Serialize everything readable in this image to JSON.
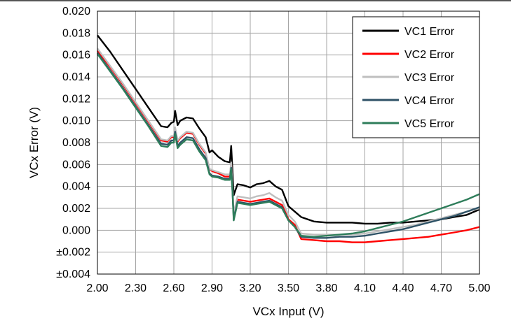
{
  "chart_data": {
    "type": "line",
    "xlabel": "VCx Input (V)",
    "ylabel": "VCx Error (V)",
    "xlim": [
      2.0,
      5.0
    ],
    "ylim": [
      -0.004,
      0.02
    ],
    "x_ticks": [
      "2.00",
      "2.30",
      "2.60",
      "2.90",
      "3.20",
      "3.50",
      "3.80",
      "4.10",
      "4.40",
      "4.70",
      "5.00"
    ],
    "y_ticks": [
      "0.020",
      "0.018",
      "0.016",
      "0.014",
      "0.012",
      "0.010",
      "0.008",
      "0.006",
      "0.004",
      "0.002",
      "0.000",
      "±0.002",
      "±0.004"
    ],
    "grid": true,
    "legend_position": "top-right",
    "series": [
      {
        "name": "VC1 Error",
        "color": "#000000",
        "x": [
          2.0,
          2.1,
          2.2,
          2.3,
          2.4,
          2.5,
          2.55,
          2.58,
          2.6,
          2.61,
          2.63,
          2.65,
          2.7,
          2.75,
          2.8,
          2.85,
          2.88,
          2.9,
          2.95,
          3.0,
          3.04,
          3.05,
          3.06,
          3.07,
          3.1,
          3.15,
          3.2,
          3.25,
          3.3,
          3.35,
          3.4,
          3.45,
          3.5,
          3.55,
          3.6,
          3.7,
          3.8,
          3.9,
          4.0,
          4.1,
          4.2,
          4.3,
          4.4,
          4.5,
          4.6,
          4.7,
          4.8,
          4.9,
          5.0
        ],
        "y": [
          0.0178,
          0.0163,
          0.0146,
          0.0129,
          0.0112,
          0.0095,
          0.0094,
          0.0098,
          0.0099,
          0.0109,
          0.0096,
          0.01,
          0.0103,
          0.0102,
          0.0093,
          0.0085,
          0.0071,
          0.0073,
          0.0067,
          0.0063,
          0.0062,
          0.0077,
          0.0055,
          0.0032,
          0.0042,
          0.0041,
          0.0039,
          0.0042,
          0.0043,
          0.0045,
          0.004,
          0.0037,
          0.0022,
          0.0017,
          0.0012,
          0.0008,
          0.0007,
          0.0007,
          0.0007,
          0.0006,
          0.0006,
          0.0007,
          0.0007,
          0.0008,
          0.0009,
          0.001,
          0.0012,
          0.0014,
          0.0019
        ]
      },
      {
        "name": "VC2 Error",
        "color": "#ff0000",
        "x": [
          2.0,
          2.1,
          2.2,
          2.3,
          2.4,
          2.5,
          2.55,
          2.58,
          2.6,
          2.61,
          2.63,
          2.65,
          2.7,
          2.75,
          2.8,
          2.85,
          2.88,
          2.9,
          2.95,
          3.0,
          3.04,
          3.05,
          3.06,
          3.07,
          3.1,
          3.15,
          3.2,
          3.25,
          3.3,
          3.35,
          3.4,
          3.45,
          3.5,
          3.55,
          3.6,
          3.7,
          3.8,
          3.9,
          4.0,
          4.1,
          4.2,
          4.3,
          4.4,
          4.5,
          4.6,
          4.7,
          4.8,
          4.9,
          5.0
        ],
        "y": [
          0.0164,
          0.0149,
          0.0133,
          0.0116,
          0.0099,
          0.0082,
          0.0081,
          0.0085,
          0.0085,
          0.0093,
          0.0081,
          0.0084,
          0.0089,
          0.0088,
          0.0078,
          0.007,
          0.0056,
          0.0054,
          0.0052,
          0.0049,
          0.0049,
          0.0061,
          0.004,
          0.0012,
          0.0028,
          0.0027,
          0.0026,
          0.0027,
          0.0028,
          0.0029,
          0.0026,
          0.0023,
          0.001,
          0.0005,
          -0.0008,
          -0.0009,
          -0.001,
          -0.001,
          -0.0011,
          -0.0011,
          -0.001,
          -0.0009,
          -0.0008,
          -0.0007,
          -0.0006,
          -0.0004,
          -0.0002,
          0.0,
          0.0003
        ]
      },
      {
        "name": "VC3 Error",
        "color": "#bfbfbf",
        "x": [
          2.0,
          2.1,
          2.2,
          2.3,
          2.4,
          2.5,
          2.55,
          2.58,
          2.6,
          2.61,
          2.63,
          2.65,
          2.7,
          2.75,
          2.8,
          2.85,
          2.88,
          2.9,
          2.95,
          3.0,
          3.04,
          3.05,
          3.06,
          3.07,
          3.1,
          3.15,
          3.2,
          3.25,
          3.3,
          3.35,
          3.4,
          3.45,
          3.5,
          3.55,
          3.6,
          3.7,
          3.8,
          3.9,
          4.0,
          4.1,
          4.2,
          4.3,
          4.4,
          4.5,
          4.6,
          4.7,
          4.8,
          4.9,
          5.0
        ],
        "y": [
          0.0166,
          0.015,
          0.0134,
          0.0117,
          0.01,
          0.0083,
          0.0082,
          0.0086,
          0.0086,
          0.0094,
          0.0082,
          0.0085,
          0.009,
          0.0089,
          0.0079,
          0.0071,
          0.0056,
          0.0055,
          0.0053,
          0.0051,
          0.0051,
          0.0062,
          0.0042,
          0.0015,
          0.0031,
          0.003,
          0.0029,
          0.0031,
          0.0032,
          0.0034,
          0.003,
          0.0027,
          0.0014,
          0.0008,
          -0.0003,
          -0.0004,
          -0.0004,
          -0.0004,
          -0.0004,
          -0.0003,
          -0.0001,
          0.0001,
          0.0003,
          0.0005,
          0.0008,
          0.0011,
          0.0014,
          0.0017,
          0.002
        ]
      },
      {
        "name": "VC4 Error",
        "color": "#2e5266",
        "x": [
          2.0,
          2.1,
          2.2,
          2.3,
          2.4,
          2.5,
          2.55,
          2.58,
          2.6,
          2.61,
          2.63,
          2.65,
          2.7,
          2.75,
          2.8,
          2.85,
          2.88,
          2.9,
          2.95,
          3.0,
          3.04,
          3.05,
          3.06,
          3.07,
          3.1,
          3.15,
          3.2,
          3.25,
          3.3,
          3.35,
          3.4,
          3.45,
          3.5,
          3.55,
          3.6,
          3.7,
          3.8,
          3.9,
          4.0,
          4.1,
          4.2,
          4.3,
          4.4,
          4.5,
          4.6,
          4.7,
          4.8,
          4.9,
          5.0
        ],
        "y": [
          0.0162,
          0.0146,
          0.013,
          0.0113,
          0.0096,
          0.0079,
          0.0078,
          0.0082,
          0.0082,
          0.009,
          0.0077,
          0.008,
          0.0085,
          0.0084,
          0.0074,
          0.0066,
          0.0052,
          0.005,
          0.0049,
          0.0047,
          0.0047,
          0.0057,
          0.0037,
          0.001,
          0.0026,
          0.0025,
          0.0024,
          0.0025,
          0.0026,
          0.0027,
          0.0024,
          0.0021,
          0.0009,
          0.0003,
          -0.0006,
          -0.0007,
          -0.0007,
          -0.0006,
          -0.0006,
          -0.0005,
          -0.0003,
          -0.0001,
          0.0001,
          0.0004,
          0.0007,
          0.001,
          0.0013,
          0.0017,
          0.0021
        ]
      },
      {
        "name": "VC5 Error",
        "color": "#2e7d5a",
        "x": [
          2.0,
          2.1,
          2.2,
          2.3,
          2.4,
          2.5,
          2.55,
          2.58,
          2.6,
          2.61,
          2.63,
          2.65,
          2.7,
          2.75,
          2.8,
          2.85,
          2.88,
          2.9,
          2.95,
          3.0,
          3.04,
          3.05,
          3.06,
          3.07,
          3.1,
          3.15,
          3.2,
          3.25,
          3.3,
          3.35,
          3.4,
          3.45,
          3.5,
          3.55,
          3.6,
          3.7,
          3.8,
          3.9,
          4.0,
          4.1,
          4.2,
          4.3,
          4.4,
          4.5,
          4.6,
          4.7,
          4.8,
          4.9,
          5.0
        ],
        "y": [
          0.0161,
          0.0145,
          0.0129,
          0.0112,
          0.0095,
          0.0077,
          0.0076,
          0.008,
          0.008,
          0.0088,
          0.0075,
          0.0078,
          0.0083,
          0.0082,
          0.0072,
          0.0064,
          0.0051,
          0.0049,
          0.0048,
          0.0046,
          0.0046,
          0.0056,
          0.0036,
          0.0009,
          0.0025,
          0.0024,
          0.0023,
          0.0024,
          0.0025,
          0.0026,
          0.0023,
          0.002,
          0.0009,
          0.0003,
          -0.0005,
          -0.0006,
          -0.0005,
          -0.0004,
          -0.0003,
          -0.0001,
          0.0002,
          0.0005,
          0.0008,
          0.0012,
          0.0016,
          0.002,
          0.0024,
          0.0028,
          0.0033
        ]
      }
    ]
  }
}
